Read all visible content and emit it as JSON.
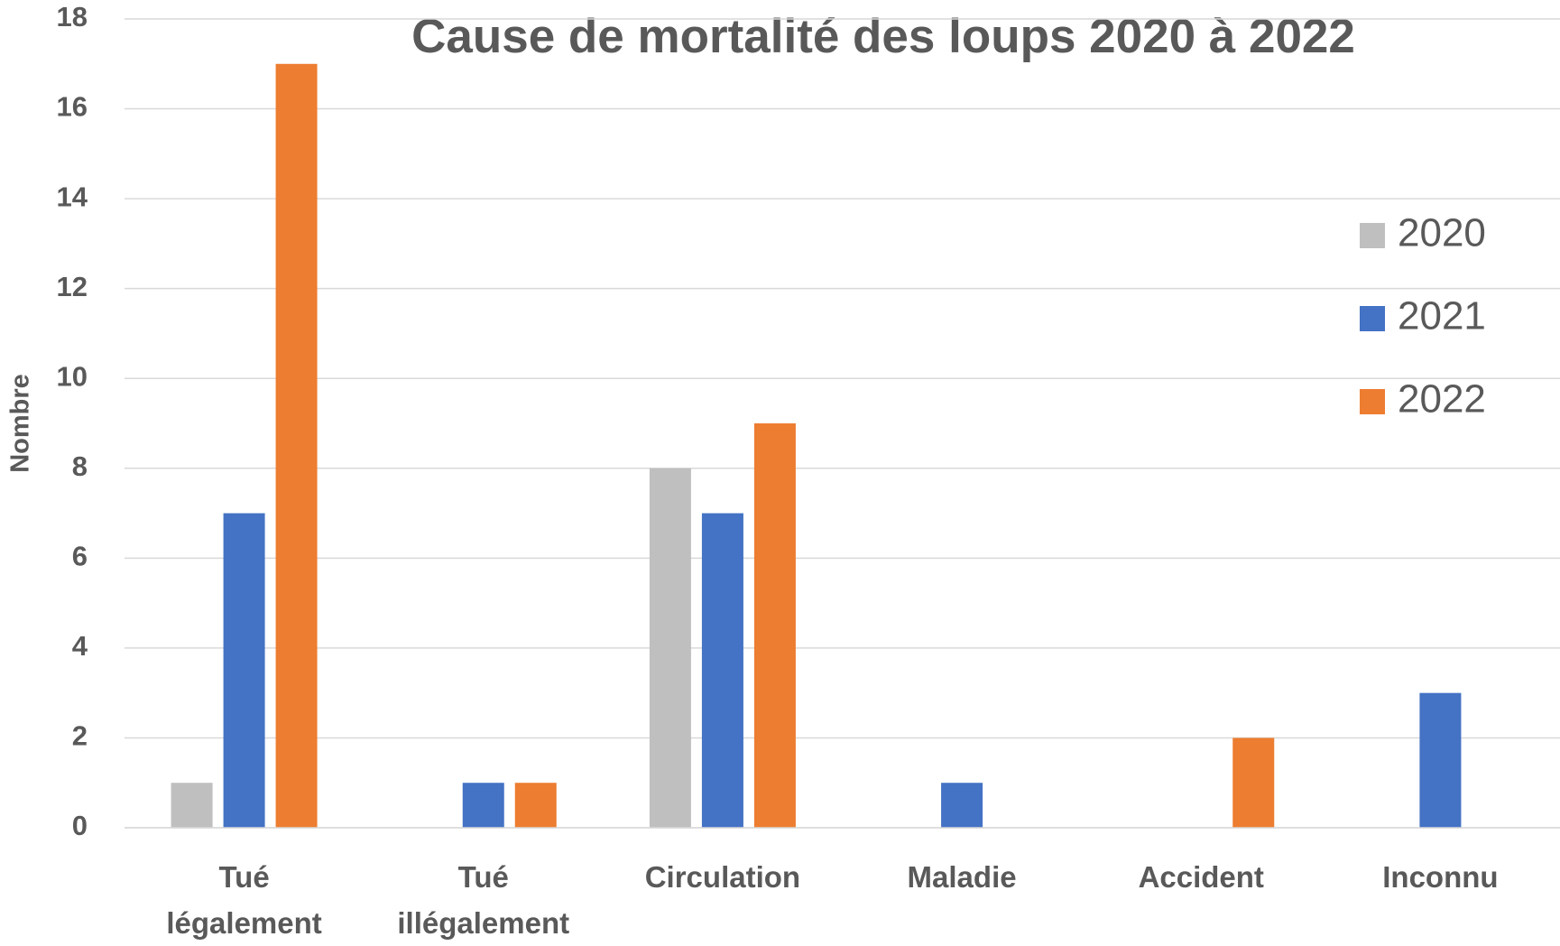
{
  "chart_data": {
    "type": "bar",
    "title": "Cause de mortalité des loups 2020 à 2022",
    "ylabel": "Nombre",
    "categories": [
      "Tué légalement",
      "Tué illégalement",
      "Circulation",
      "Maladie",
      "Accident",
      "Inconnu"
    ],
    "series": [
      {
        "name": "2020",
        "color": "#bfbfbf",
        "values": [
          1,
          0,
          8,
          0,
          0,
          0
        ]
      },
      {
        "name": "2021",
        "color": "#4472c4",
        "values": [
          7,
          1,
          7,
          1,
          0,
          3
        ]
      },
      {
        "name": "2022",
        "color": "#ed7d31",
        "values": [
          17,
          1,
          9,
          0,
          2,
          0
        ]
      }
    ],
    "ylim": [
      0,
      18
    ],
    "yticks": [
      0,
      2,
      4,
      6,
      8,
      10,
      12,
      14,
      16,
      18
    ],
    "grid": true,
    "legend": "right"
  }
}
